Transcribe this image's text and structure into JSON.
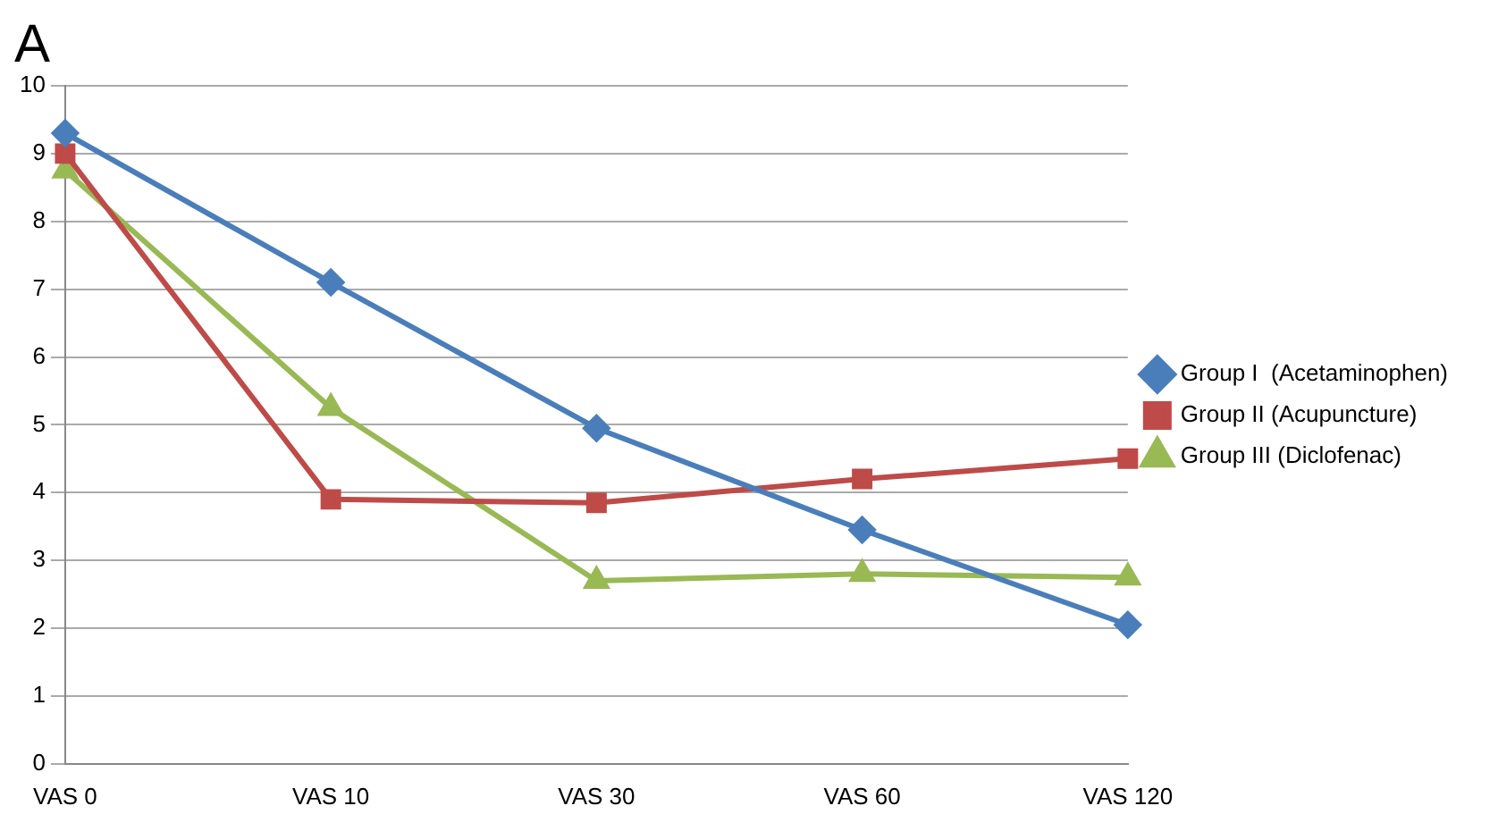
{
  "chart_data": {
    "type": "line",
    "title": "A",
    "categories": [
      "VAS 0",
      "VAS 10",
      "VAS 30",
      "VAS 60",
      "VAS 120"
    ],
    "series": [
      {
        "name": "Group I  (Acetaminophen)",
        "color": "#4a7ebb",
        "marker": "diamond",
        "values": [
          9.3,
          7.1,
          4.95,
          3.45,
          2.05
        ]
      },
      {
        "name": "Group II (Acupuncture)",
        "color": "#be4b48",
        "marker": "square",
        "values": [
          9.0,
          3.9,
          3.85,
          4.2,
          4.5
        ]
      },
      {
        "name": "Group III (Diclofenac)",
        "color": "#98b954",
        "marker": "triangle",
        "values": [
          8.75,
          5.25,
          2.7,
          2.8,
          2.75
        ]
      }
    ],
    "ylim": [
      0,
      10
    ],
    "yticks": [
      0,
      1,
      2,
      3,
      4,
      5,
      6,
      7,
      8,
      9,
      10
    ],
    "grid": "y",
    "legend": "right",
    "line_style": "solid"
  }
}
